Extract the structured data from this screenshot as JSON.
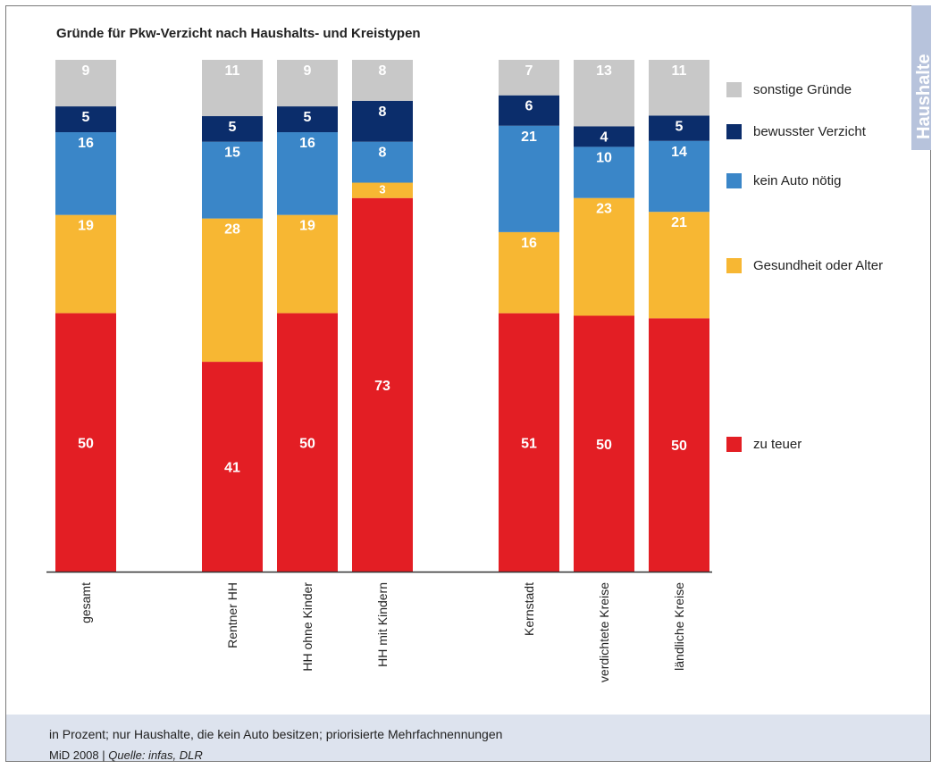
{
  "chart_data": {
    "type": "bar",
    "stacked": true,
    "percent_stacked": true,
    "title": "Gründe für Pkw-Verzicht nach Haushalts- und Kreistypen",
    "categories": [
      "gesamt",
      "Rentner HH",
      "HH ohne Kinder",
      "HH mit Kindern",
      "Kernstadt",
      "verdichtete Kreise",
      "ländliche Kreise"
    ],
    "groups": [
      [
        "gesamt"
      ],
      [
        "Rentner HH",
        "HH ohne Kinder",
        "HH mit Kindern"
      ],
      [
        "Kernstadt",
        "verdichtete Kreise",
        "ländliche Kreise"
      ]
    ],
    "series": [
      {
        "name": "zu teuer",
        "color": "#e31e24",
        "values": [
          50,
          41,
          50,
          73,
          51,
          50,
          50
        ]
      },
      {
        "name": "Gesundheit oder Alter",
        "color": "#f7b733",
        "values": [
          19,
          28,
          19,
          3,
          16,
          23,
          21
        ]
      },
      {
        "name": "kein Auto nötig",
        "color": "#3a86c8",
        "values": [
          16,
          15,
          16,
          8,
          21,
          10,
          14
        ]
      },
      {
        "name": "bewusster Verzicht",
        "color": "#0b2d6b",
        "values": [
          5,
          5,
          5,
          8,
          6,
          4,
          5
        ]
      },
      {
        "name": "sonstige Gründe",
        "color": "#c8c8c8",
        "values": [
          9,
          11,
          9,
          8,
          7,
          13,
          11
        ]
      }
    ],
    "legend_order": [
      "sonstige Gründe",
      "bewusster Verzicht",
      "kein Auto nötig",
      "Gesundheit oder Alter",
      "zu teuer"
    ],
    "legend_position": "right",
    "label_color": "#ffffff",
    "axis_color": "#333333"
  },
  "side_tab": {
    "label": "Haushalte",
    "color": "#b7c3dc"
  },
  "footer": {
    "note": "in Prozent; nur Haushalte, die kein Auto besitzen; priorisierte Mehrfachnennungen",
    "source_prefix": "MiD 2008 | ",
    "source_italic": "Quelle: infas, DLR"
  }
}
